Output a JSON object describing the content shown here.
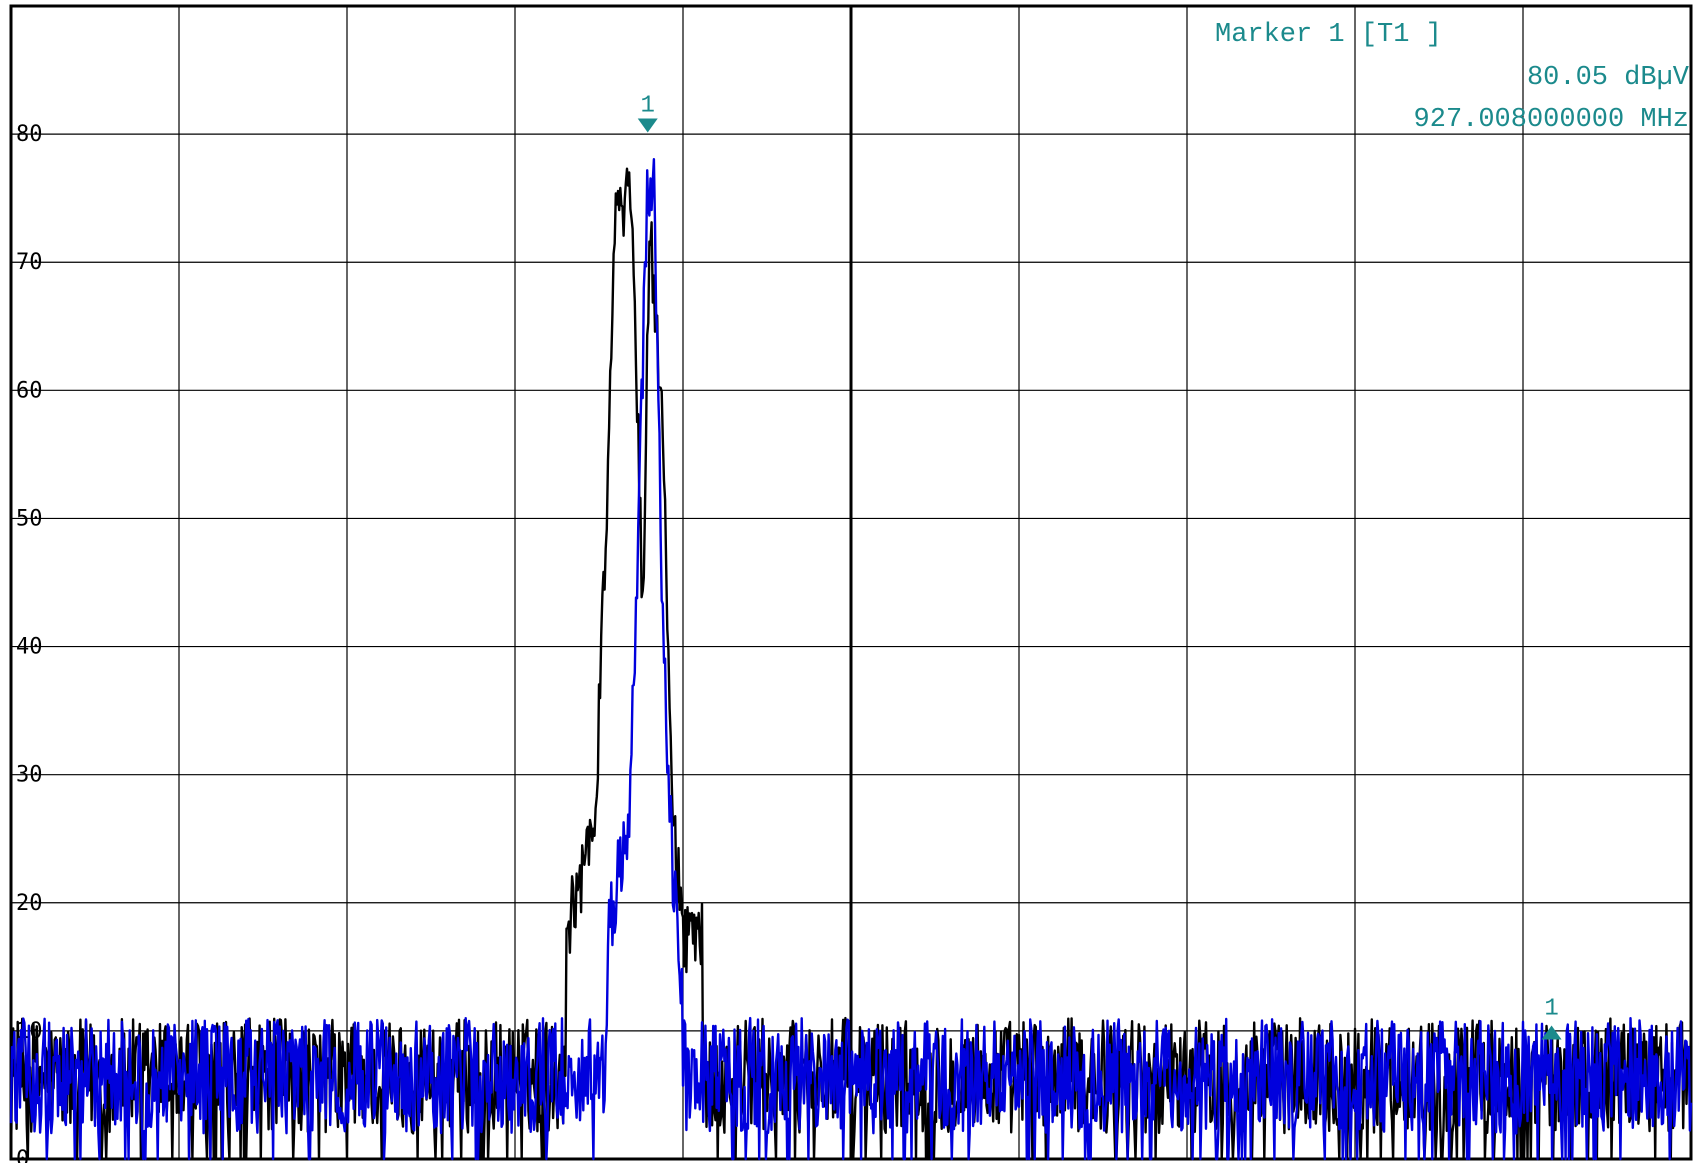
{
  "chart_data": {
    "type": "line",
    "title": "",
    "xlabel": "",
    "ylabel": "",
    "ylim": [
      0,
      90
    ],
    "y_ticks": [
      "80",
      "70",
      "60",
      "50",
      "40",
      "30",
      "20",
      "10",
      "0"
    ],
    "grid": true,
    "x_divisions": 10,
    "x_position_unit": "fraction of span",
    "noise_floor": [
      2,
      11
    ],
    "series": [
      {
        "color": "#000000",
        "peak_envelope": [
          {
            "x": 0.33,
            "y": 20
          },
          {
            "x": 0.348,
            "y": 30
          },
          {
            "x": 0.356,
            "y": 60
          },
          {
            "x": 0.36,
            "y": 77
          },
          {
            "x": 0.364,
            "y": 78
          },
          {
            "x": 0.37,
            "y": 77
          },
          {
            "x": 0.376,
            "y": 45
          },
          {
            "x": 0.38,
            "y": 76
          },
          {
            "x": 0.388,
            "y": 60
          },
          {
            "x": 0.394,
            "y": 30
          },
          {
            "x": 0.4,
            "y": 20
          },
          {
            "x": 0.412,
            "y": 20
          }
        ]
      },
      {
        "color": "#0000dd",
        "peak_envelope": [
          {
            "x": 0.355,
            "y": 20
          },
          {
            "x": 0.368,
            "y": 30
          },
          {
            "x": 0.374,
            "y": 55
          },
          {
            "x": 0.379,
            "y": 80
          },
          {
            "x": 0.383,
            "y": 78
          },
          {
            "x": 0.388,
            "y": 45
          },
          {
            "x": 0.394,
            "y": 25
          },
          {
            "x": 0.4,
            "y": 15
          }
        ]
      }
    ],
    "markers": [
      {
        "label": "1",
        "x": 0.379,
        "y": 80.05,
        "direction": "down",
        "color": "#1b8a8c"
      },
      {
        "label": "1",
        "x": 0.917,
        "y": 10.5,
        "direction": "up",
        "color": "#1b8a8c"
      }
    ],
    "readout": {
      "line1": "Marker 1 [T1 ]",
      "line2": "80.05 dBµV",
      "line3": "927.008000000 MHz",
      "color": "#1b8a8c"
    }
  }
}
